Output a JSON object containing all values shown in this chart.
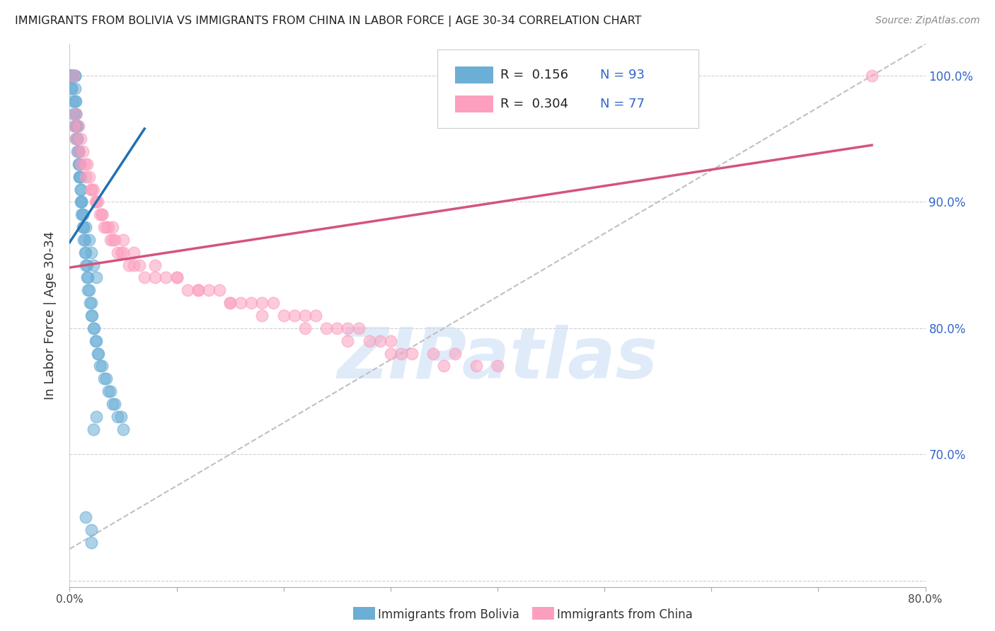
{
  "title": "IMMIGRANTS FROM BOLIVIA VS IMMIGRANTS FROM CHINA IN LABOR FORCE | AGE 30-34 CORRELATION CHART",
  "source": "Source: ZipAtlas.com",
  "ylabel": "In Labor Force | Age 30-34",
  "bolivia_R": 0.156,
  "bolivia_N": 93,
  "china_R": 0.304,
  "china_N": 77,
  "bolivia_color": "#6baed6",
  "china_color": "#fc9fbf",
  "bolivia_line_color": "#2171b5",
  "china_line_color": "#d4547a",
  "ref_line_color": "#c0c0c0",
  "xlim": [
    0.0,
    0.8
  ],
  "ylim": [
    0.595,
    1.025
  ],
  "right_yticks": [
    0.7,
    0.8,
    0.9,
    1.0
  ],
  "right_yticklabels": [
    "70.0%",
    "80.0%",
    "90.0%",
    "100.0%"
  ],
  "xticks": [
    0.0,
    0.1,
    0.2,
    0.3,
    0.4,
    0.5,
    0.6,
    0.7,
    0.8
  ],
  "xticklabels": [
    "0.0%",
    "",
    "",
    "",
    "",
    "",
    "",
    "",
    "80.0%"
  ],
  "legend_labels": [
    "Immigrants from Bolivia",
    "Immigrants from China"
  ],
  "watermark": "ZIPatlas",
  "bolivia_line": [
    0.0,
    0.07,
    0.868,
    0.958
  ],
  "china_line": [
    0.0,
    0.75,
    0.848,
    0.945
  ],
  "ref_line": [
    0.0,
    0.8,
    0.625,
    1.025
  ],
  "bolivia_x": [
    0.001,
    0.001,
    0.002,
    0.002,
    0.002,
    0.003,
    0.003,
    0.003,
    0.003,
    0.004,
    0.004,
    0.004,
    0.005,
    0.005,
    0.005,
    0.005,
    0.006,
    0.006,
    0.006,
    0.006,
    0.007,
    0.007,
    0.007,
    0.007,
    0.008,
    0.008,
    0.008,
    0.009,
    0.009,
    0.009,
    0.01,
    0.01,
    0.01,
    0.011,
    0.011,
    0.012,
    0.012,
    0.013,
    0.013,
    0.014,
    0.014,
    0.015,
    0.015,
    0.016,
    0.016,
    0.017,
    0.017,
    0.018,
    0.019,
    0.02,
    0.02,
    0.021,
    0.022,
    0.023,
    0.024,
    0.025,
    0.026,
    0.027,
    0.028,
    0.03,
    0.032,
    0.034,
    0.036,
    0.038,
    0.04,
    0.042,
    0.045,
    0.048,
    0.05,
    0.001,
    0.001,
    0.002,
    0.002,
    0.003,
    0.004,
    0.005,
    0.006,
    0.007,
    0.008,
    0.009,
    0.01,
    0.011,
    0.012,
    0.015,
    0.018,
    0.02,
    0.022,
    0.025,
    0.015,
    0.02,
    0.022,
    0.025,
    0.02
  ],
  "bolivia_y": [
    1.0,
    1.0,
    1.0,
    1.0,
    1.0,
    1.0,
    1.0,
    1.0,
    1.0,
    1.0,
    1.0,
    1.0,
    1.0,
    1.0,
    0.99,
    0.98,
    0.98,
    0.97,
    0.97,
    0.96,
    0.96,
    0.96,
    0.95,
    0.95,
    0.94,
    0.94,
    0.94,
    0.93,
    0.93,
    0.92,
    0.92,
    0.91,
    0.9,
    0.9,
    0.89,
    0.89,
    0.88,
    0.88,
    0.87,
    0.87,
    0.86,
    0.86,
    0.85,
    0.85,
    0.84,
    0.84,
    0.83,
    0.83,
    0.82,
    0.82,
    0.81,
    0.81,
    0.8,
    0.8,
    0.79,
    0.79,
    0.78,
    0.78,
    0.77,
    0.77,
    0.76,
    0.76,
    0.75,
    0.75,
    0.74,
    0.74,
    0.73,
    0.73,
    0.72,
    1.0,
    1.0,
    0.99,
    0.99,
    0.98,
    0.97,
    0.96,
    0.95,
    0.94,
    0.93,
    0.92,
    0.91,
    0.9,
    0.89,
    0.88,
    0.87,
    0.86,
    0.85,
    0.84,
    0.65,
    0.64,
    0.72,
    0.73,
    0.63
  ],
  "china_x": [
    0.004,
    0.006,
    0.008,
    0.01,
    0.012,
    0.014,
    0.016,
    0.018,
    0.02,
    0.022,
    0.024,
    0.026,
    0.028,
    0.03,
    0.032,
    0.034,
    0.036,
    0.038,
    0.04,
    0.042,
    0.045,
    0.048,
    0.05,
    0.055,
    0.06,
    0.065,
    0.07,
    0.08,
    0.09,
    0.1,
    0.11,
    0.12,
    0.13,
    0.14,
    0.15,
    0.16,
    0.17,
    0.18,
    0.19,
    0.2,
    0.21,
    0.22,
    0.23,
    0.24,
    0.25,
    0.26,
    0.27,
    0.28,
    0.29,
    0.3,
    0.31,
    0.32,
    0.34,
    0.36,
    0.38,
    0.4,
    0.004,
    0.006,
    0.008,
    0.01,
    0.015,
    0.02,
    0.025,
    0.03,
    0.04,
    0.05,
    0.06,
    0.08,
    0.1,
    0.12,
    0.15,
    0.18,
    0.22,
    0.26,
    0.3,
    0.35,
    0.75
  ],
  "china_y": [
    1.0,
    0.97,
    0.96,
    0.95,
    0.94,
    0.93,
    0.93,
    0.92,
    0.91,
    0.91,
    0.9,
    0.9,
    0.89,
    0.89,
    0.88,
    0.88,
    0.88,
    0.87,
    0.87,
    0.87,
    0.86,
    0.86,
    0.86,
    0.85,
    0.85,
    0.85,
    0.84,
    0.84,
    0.84,
    0.84,
    0.83,
    0.83,
    0.83,
    0.83,
    0.82,
    0.82,
    0.82,
    0.82,
    0.82,
    0.81,
    0.81,
    0.81,
    0.81,
    0.8,
    0.8,
    0.8,
    0.8,
    0.79,
    0.79,
    0.79,
    0.78,
    0.78,
    0.78,
    0.78,
    0.77,
    0.77,
    0.96,
    0.95,
    0.94,
    0.93,
    0.92,
    0.91,
    0.9,
    0.89,
    0.88,
    0.87,
    0.86,
    0.85,
    0.84,
    0.83,
    0.82,
    0.81,
    0.8,
    0.79,
    0.78,
    0.77,
    1.0
  ]
}
